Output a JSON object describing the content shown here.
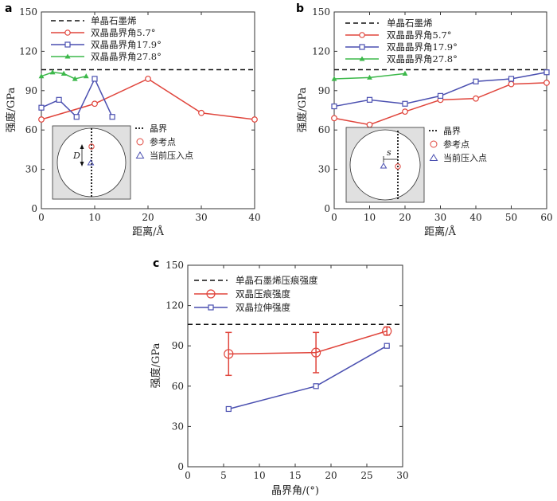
{
  "colors": {
    "reference": "#111111",
    "angle_5_7": "#e0453c",
    "angle_17_9": "#4a4fb0",
    "angle_27_8": "#3cb84a",
    "compression": "#e0453c",
    "tension": "#4a4fb0",
    "inset_fill": "#e0e0e0"
  },
  "chart_data": [
    {
      "id": "a",
      "type": "line",
      "panel_label": "a",
      "title": "",
      "xlabel": "距离/Å",
      "ylabel": "强度/GPa",
      "xlim": [
        0,
        40
      ],
      "ylim": [
        0,
        150
      ],
      "xticks": [
        0,
        10,
        20,
        30,
        40
      ],
      "yticks": [
        0,
        30,
        60,
        90,
        120,
        150
      ],
      "reference": {
        "name": "单晶石墨烯",
        "y": 106
      },
      "series": [
        {
          "name": "双晶晶界角5.7°",
          "marker": "circle",
          "color_key": "angle_5_7",
          "points": [
            [
              0,
              68
            ],
            [
              10,
              80
            ],
            [
              20,
              99
            ],
            [
              30,
              73
            ],
            [
              40,
              68
            ]
          ]
        },
        {
          "name": "双晶晶界角17.9°",
          "marker": "square",
          "color_key": "angle_17_9",
          "points": [
            [
              0,
              77
            ],
            [
              3.3,
              83
            ],
            [
              6.6,
              70
            ],
            [
              10,
              99
            ],
            [
              13.3,
              70
            ]
          ]
        },
        {
          "name": "双晶晶界角27.8°",
          "marker": "triangle",
          "color_key": "angle_27_8",
          "points": [
            [
              0,
              101
            ],
            [
              2.1,
              104
            ],
            [
              4.2,
              103
            ],
            [
              6.3,
              99
            ],
            [
              8.4,
              101
            ]
          ]
        }
      ],
      "inset": {
        "boundary_label": "晶界",
        "ref_point_label": "参考点",
        "current_point_label": "当前压入点",
        "distance_symbol": "D"
      }
    },
    {
      "id": "b",
      "type": "line",
      "panel_label": "b",
      "title": "",
      "xlabel": "距离/Å",
      "ylabel": "强度/GPa",
      "xlim": [
        0,
        60
      ],
      "ylim": [
        0,
        150
      ],
      "xticks": [
        0,
        10,
        20,
        30,
        40,
        50,
        60
      ],
      "yticks": [
        0,
        30,
        60,
        90,
        120,
        150
      ],
      "reference": {
        "name": "单晶石墨烯",
        "y": 106
      },
      "series": [
        {
          "name": "双晶晶界角5.7°",
          "marker": "circle",
          "color_key": "angle_5_7",
          "points": [
            [
              0,
              69
            ],
            [
              10,
              64
            ],
            [
              20,
              74
            ],
            [
              30,
              83
            ],
            [
              40,
              84
            ],
            [
              50,
              95
            ],
            [
              60,
              96
            ]
          ]
        },
        {
          "name": "双晶晶界角17.9°",
          "marker": "square",
          "color_key": "angle_17_9",
          "points": [
            [
              0,
              78
            ],
            [
              10,
              83
            ],
            [
              20,
              80
            ],
            [
              30,
              86
            ],
            [
              40,
              97
            ],
            [
              50,
              99
            ],
            [
              60,
              104
            ]
          ]
        },
        {
          "name": "双晶晶界角27.8°",
          "marker": "triangle",
          "color_key": "angle_27_8",
          "points": [
            [
              0,
              99
            ],
            [
              10,
              100
            ],
            [
              20,
              103
            ]
          ]
        }
      ],
      "inset": {
        "boundary_label": "晶界",
        "ref_point_label": "参考点",
        "current_point_label": "当前压入点",
        "distance_symbol": "s"
      }
    },
    {
      "id": "c",
      "type": "line",
      "panel_label": "c",
      "title": "",
      "xlabel": "晶界角/(°)",
      "ylabel": "强度/GPa",
      "xlim": [
        0,
        30
      ],
      "ylim": [
        0,
        150
      ],
      "xticks": [
        0,
        5,
        10,
        15,
        20,
        25,
        30
      ],
      "yticks": [
        0,
        30,
        60,
        90,
        120,
        150
      ],
      "reference": {
        "name": "单晶石墨烯压痕强度",
        "y": 106
      },
      "series": [
        {
          "name": "双晶压痕强度",
          "marker": "circle-large",
          "color_key": "compression",
          "points": [
            [
              5.7,
              84
            ],
            [
              17.9,
              85
            ],
            [
              27.8,
              101
            ]
          ],
          "error": [
            [
              68,
              100
            ],
            [
              70,
              100
            ],
            [
              98,
              104
            ]
          ]
        },
        {
          "name": "双晶拉伸强度",
          "marker": "square",
          "color_key": "tension",
          "points": [
            [
              5.7,
              43
            ],
            [
              17.9,
              60
            ],
            [
              27.8,
              90
            ]
          ]
        }
      ]
    }
  ]
}
